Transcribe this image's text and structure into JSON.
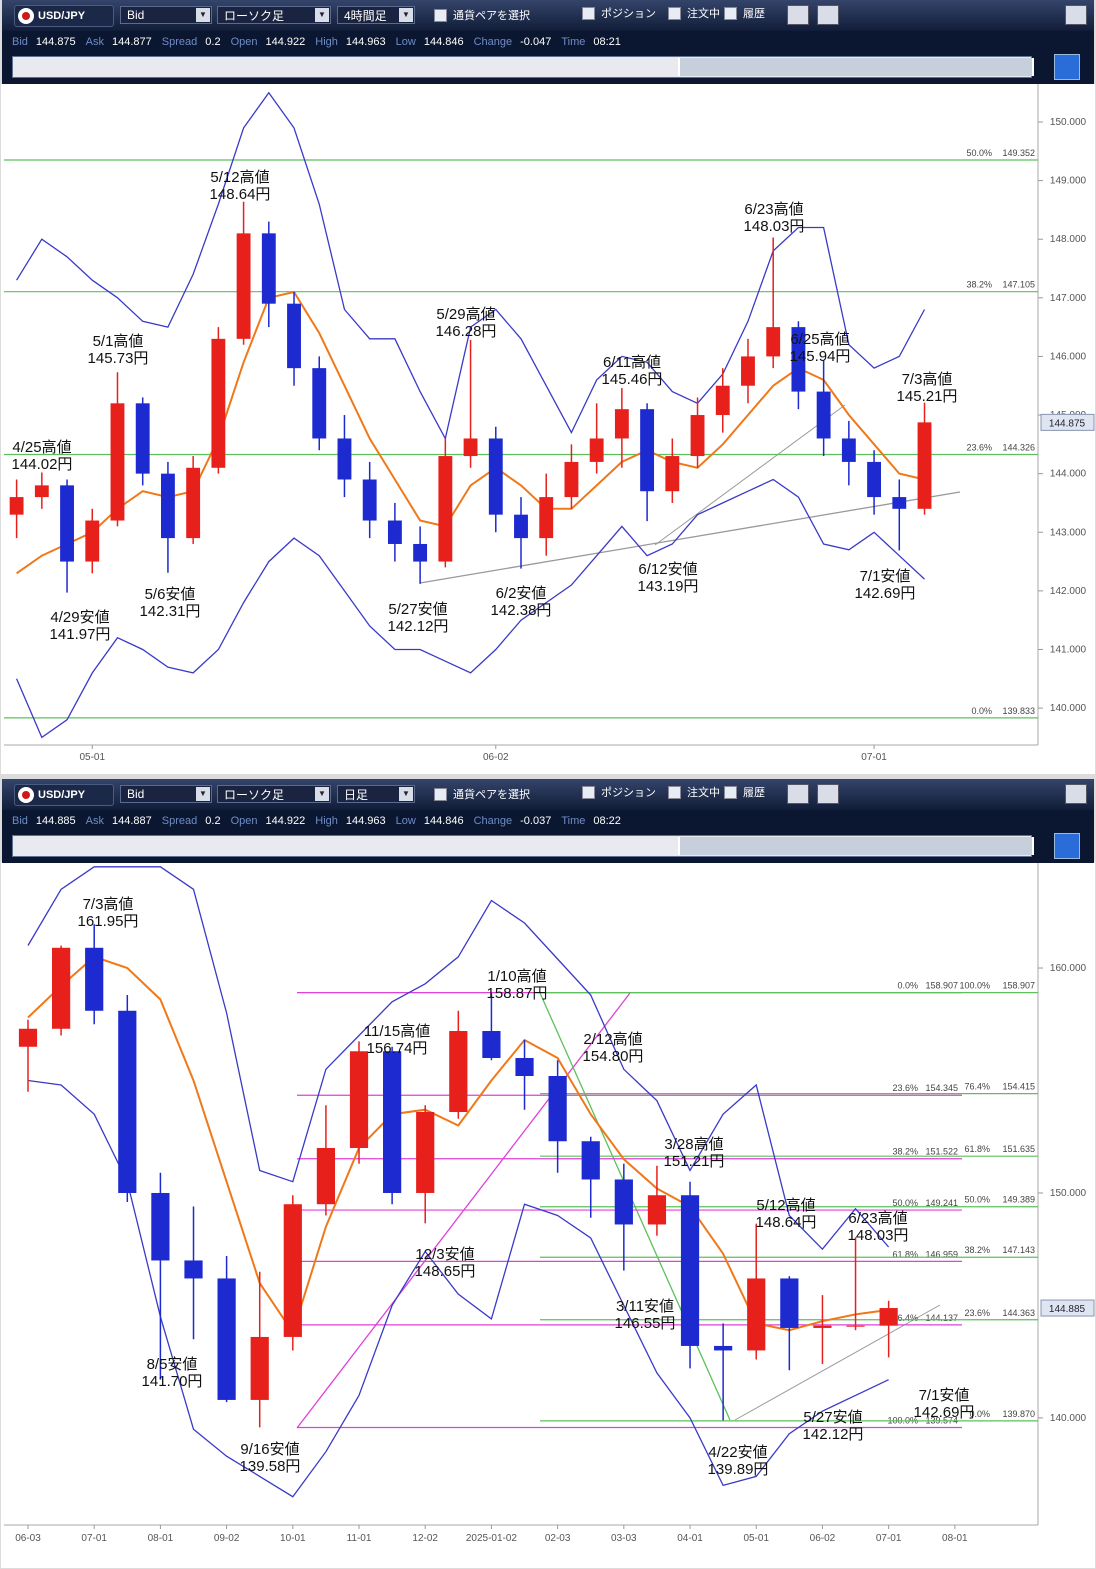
{
  "toolbars": [
    {
      "pair": "USD/JPY",
      "price_type": "Bid",
      "chart_style": "ローソク足",
      "timeframe": "4時間足",
      "select_pair": "通貨ペアを選択",
      "toggles": [
        "ポジション",
        "注文中",
        "履歴"
      ],
      "quote": [
        {
          "label": "Bid",
          "value": 144.875
        },
        {
          "label": "Ask",
          "value": 144.877
        },
        {
          "label": "Spread",
          "value": 0.2
        },
        {
          "label": "Open",
          "value": 144.922
        },
        {
          "label": "High",
          "value": 144.963
        },
        {
          "label": "Low",
          "value": 144.846
        },
        {
          "label": "Change",
          "value": -0.047
        },
        {
          "label": "Time",
          "value": "08:21"
        }
      ]
    },
    {
      "pair": "USD/JPY",
      "price_type": "Bid",
      "chart_style": "ローソク足",
      "timeframe": "日足",
      "select_pair": "通貨ペアを選択",
      "toggles": [
        "ポジション",
        "注文中",
        "履歴"
      ],
      "quote": [
        {
          "label": "Bid",
          "value": 144.885
        },
        {
          "label": "Ask",
          "value": 144.887
        },
        {
          "label": "Spread",
          "value": 0.2
        },
        {
          "label": "Open",
          "value": 144.922
        },
        {
          "label": "High",
          "value": 144.963
        },
        {
          "label": "Low",
          "value": 144.846
        },
        {
          "label": "Change",
          "value": -0.037
        },
        {
          "label": "Time",
          "value": "08:22"
        }
      ]
    }
  ],
  "chart_data": [
    {
      "type": "candlestick",
      "up_color": "#e8201c",
      "down_color": "#1c2ad0",
      "ma_color": "#f07818",
      "band_color": "#3a3ac8",
      "categories": [
        null,
        null,
        null,
        "05-01",
        null,
        null,
        null,
        null,
        null,
        null,
        null,
        null,
        null,
        null,
        null,
        null,
        null,
        null,
        null,
        "06-02",
        null,
        null,
        null,
        null,
        null,
        null,
        null,
        null,
        null,
        null,
        null,
        null,
        null,
        null,
        "07-01",
        null,
        null,
        null,
        null,
        null,
        null
      ],
      "open": [
        143.3,
        143.6,
        143.8,
        142.5,
        143.2,
        145.2,
        144.0,
        142.9,
        144.1,
        146.3,
        148.1,
        146.9,
        145.8,
        144.6,
        143.9,
        143.2,
        142.8,
        142.5,
        144.3,
        144.6,
        143.3,
        142.9,
        143.6,
        144.2,
        144.6,
        145.1,
        143.7,
        144.3,
        145.0,
        145.5,
        146.0,
        146.5,
        145.4,
        144.6,
        144.2,
        143.6,
        143.4,
        null,
        null,
        null,
        null
      ],
      "high": [
        143.9,
        144.02,
        143.9,
        143.4,
        145.73,
        145.3,
        144.2,
        144.3,
        146.5,
        148.64,
        148.3,
        147.1,
        146.0,
        145.0,
        144.2,
        143.5,
        143.1,
        144.6,
        146.28,
        144.8,
        143.6,
        144.0,
        144.5,
        145.2,
        145.46,
        145.2,
        144.6,
        145.3,
        145.8,
        146.3,
        148.03,
        146.6,
        145.94,
        144.9,
        144.4,
        143.9,
        145.21,
        null,
        null,
        null,
        null
      ],
      "low": [
        142.9,
        143.4,
        141.97,
        142.3,
        143.1,
        143.8,
        142.31,
        142.8,
        144.0,
        146.2,
        146.5,
        145.5,
        144.4,
        143.6,
        142.9,
        142.5,
        142.12,
        142.4,
        144.1,
        143.0,
        142.38,
        142.6,
        143.4,
        144.0,
        144.1,
        143.19,
        143.5,
        144.1,
        144.7,
        145.2,
        145.8,
        145.1,
        144.3,
        143.8,
        143.3,
        142.69,
        143.3,
        null,
        null,
        null,
        null
      ],
      "close": [
        143.6,
        143.8,
        142.5,
        143.2,
        145.2,
        144.0,
        142.9,
        144.1,
        146.3,
        148.1,
        146.9,
        145.8,
        144.6,
        143.9,
        143.2,
        142.8,
        142.5,
        144.3,
        144.6,
        143.3,
        142.9,
        143.6,
        144.2,
        144.6,
        145.1,
        143.7,
        144.3,
        145.0,
        145.5,
        146.0,
        146.5,
        145.4,
        144.6,
        144.2,
        143.6,
        143.4,
        144.875,
        null,
        null,
        null,
        null
      ],
      "ma": [
        142.3,
        142.6,
        142.8,
        143.0,
        143.4,
        143.7,
        143.6,
        143.7,
        144.6,
        145.9,
        147.0,
        147.1,
        146.4,
        145.5,
        144.6,
        143.9,
        143.2,
        143.1,
        143.8,
        144.1,
        143.8,
        143.4,
        143.4,
        143.8,
        144.2,
        144.4,
        144.2,
        144.1,
        144.5,
        145.0,
        145.5,
        145.8,
        145.6,
        145.0,
        144.5,
        144.0,
        143.9,
        null,
        null,
        null,
        null
      ],
      "upper_band": [
        147.3,
        148.0,
        147.7,
        147.3,
        147.0,
        146.6,
        146.5,
        147.4,
        148.6,
        149.9,
        150.5,
        149.9,
        148.6,
        146.8,
        146.3,
        146.3,
        145.4,
        144.6,
        146.5,
        146.8,
        146.3,
        145.5,
        144.7,
        145.6,
        146.0,
        145.9,
        145.4,
        145.2,
        145.7,
        146.6,
        147.8,
        148.2,
        148.2,
        146.2,
        145.8,
        146.0,
        146.8,
        null,
        null,
        null,
        null
      ],
      "lower_band": [
        140.5,
        139.5,
        139.8,
        140.6,
        141.2,
        141.0,
        140.7,
        140.6,
        141.0,
        141.8,
        142.5,
        142.9,
        142.6,
        142.0,
        141.4,
        141.0,
        141.0,
        140.8,
        140.6,
        141.0,
        141.5,
        141.8,
        142.1,
        142.6,
        143.1,
        142.6,
        142.8,
        143.3,
        143.5,
        143.7,
        143.9,
        143.6,
        142.8,
        142.7,
        143.0,
        142.6,
        142.2,
        null,
        null,
        null,
        null
      ],
      "ylim": [
        139.37,
        150.58
      ],
      "yticks": [
        {
          "value": 140,
          "label": "140.000"
        },
        {
          "value": 141,
          "label": "141.000"
        },
        {
          "value": 142,
          "label": "142.000"
        },
        {
          "value": 143,
          "label": "143.000"
        },
        {
          "value": 144,
          "label": "144.000"
        },
        {
          "value": 145,
          "label": "145.000"
        },
        {
          "value": 146,
          "label": "146.000"
        },
        {
          "value": 147,
          "label": "147.000"
        },
        {
          "value": 148,
          "label": "148.000"
        },
        {
          "value": 149,
          "label": "149.000"
        },
        {
          "value": 150,
          "label": "150.000"
        }
      ],
      "last_price": 144.875,
      "fib_sets": [
        {
          "color": "#5cc05c",
          "levels": [
            {
              "pct": "50.0%",
              "price": 149.352
            },
            {
              "pct": "38.2%",
              "price": 147.105
            },
            {
              "pct": "23.6%",
              "price": 144.326
            },
            {
              "pct": "0.0%",
              "price": 139.833
            }
          ]
        }
      ],
      "annotations": [
        [
          "4/25高値",
          "144.02円"
        ],
        [
          "4/29安値",
          "141.97円"
        ],
        [
          "5/1高値",
          "145.73円"
        ],
        [
          "5/6安値",
          "142.31円"
        ],
        [
          "5/12高値",
          "148.64円"
        ],
        [
          "5/27安値",
          "142.12円"
        ],
        [
          "5/29高値",
          "146.28円"
        ],
        [
          "6/2安値",
          "142.38円"
        ],
        [
          "6/11高値",
          "145.46円"
        ],
        [
          "6/12安値",
          "143.19円"
        ],
        [
          "6/23高値",
          "148.03円"
        ],
        [
          "6/25高値",
          "145.94円"
        ],
        [
          "7/3高値",
          "145.21円"
        ],
        [
          "7/1安値",
          "142.69円"
        ]
      ]
    },
    {
      "type": "candlestick",
      "up_color": "#e8201c",
      "down_color": "#1c2ad0",
      "ma_color": "#f07818",
      "band_color": "#3a3ac8",
      "categories": [
        "06-03",
        null,
        "07-01",
        null,
        "08-01",
        null,
        "09-02",
        null,
        "10-01",
        null,
        "11-01",
        null,
        "12-02",
        null,
        "2025-01-02",
        null,
        "02-03",
        null,
        "03-03",
        null,
        "04-01",
        null,
        "05-01",
        null,
        "06-02",
        null,
        "07-01",
        null,
        "08-01",
        null,
        null
      ],
      "open": [
        156.5,
        157.3,
        160.9,
        158.1,
        150.0,
        147.0,
        146.2,
        140.8,
        143.6,
        149.5,
        152.0,
        156.3,
        150.0,
        153.6,
        157.2,
        156.0,
        155.2,
        152.3,
        150.6,
        148.6,
        149.9,
        143.2,
        143.0,
        146.2,
        144.0,
        144.1,
        144.1,
        null,
        null,
        null,
        null
      ],
      "high": [
        157.7,
        161.0,
        161.95,
        158.8,
        150.9,
        149.4,
        147.2,
        146.5,
        149.9,
        153.9,
        156.74,
        156.5,
        153.9,
        158.1,
        158.87,
        156.8,
        155.9,
        152.5,
        151.3,
        151.21,
        150.5,
        144.2,
        148.64,
        146.3,
        145.46,
        148.03,
        145.21,
        null,
        null,
        null,
        null
      ],
      "low": [
        154.5,
        157.0,
        157.5,
        149.6,
        141.7,
        143.5,
        140.7,
        139.58,
        143.0,
        149.0,
        151.3,
        149.5,
        148.65,
        153.3,
        155.9,
        153.7,
        150.9,
        148.9,
        146.55,
        148.1,
        142.2,
        139.89,
        142.6,
        142.12,
        142.4,
        143.9,
        142.69,
        null,
        null,
        null,
        null
      ],
      "close": [
        157.3,
        160.9,
        158.1,
        150.0,
        147.0,
        146.2,
        140.8,
        143.6,
        149.5,
        152.0,
        156.3,
        150.0,
        153.6,
        157.2,
        156.0,
        155.2,
        152.3,
        150.6,
        148.6,
        149.9,
        143.2,
        143.0,
        146.2,
        144.0,
        144.1,
        144.1,
        144.885,
        null,
        null,
        null,
        null
      ],
      "ma": [
        157.8,
        159.2,
        160.5,
        160.0,
        158.6,
        155.0,
        150.5,
        146.0,
        143.8,
        148.5,
        152.0,
        153.5,
        153.7,
        153.0,
        155.0,
        156.8,
        156.0,
        153.5,
        151.5,
        150.2,
        149.4,
        147.3,
        144.2,
        143.9,
        144.3,
        144.6,
        144.8,
        null,
        null,
        null,
        null
      ],
      "upper_band": [
        161.0,
        163.5,
        164.5,
        164.5,
        164.5,
        163.5,
        158.0,
        151.0,
        150.5,
        155.5,
        157.0,
        158.5,
        159.3,
        160.5,
        163.0,
        162.0,
        160.4,
        158.8,
        155.5,
        154.1,
        151.0,
        153.5,
        154.8,
        149.0,
        147.5,
        149.3,
        147.6,
        null,
        null,
        null,
        null
      ],
      "lower_band": [
        155.0,
        154.8,
        153.5,
        150.5,
        144.5,
        139.5,
        138.3,
        137.4,
        136.5,
        138.5,
        141.0,
        145.0,
        147.4,
        145.5,
        144.4,
        149.5,
        149.0,
        148.0,
        145.0,
        142.0,
        140.0,
        137.0,
        137.4,
        139.3,
        140.3,
        141.0,
        141.7,
        null,
        null,
        null,
        null
      ],
      "ylim": [
        135.24,
        164.58
      ],
      "yticks": [
        {
          "value": 140,
          "label": "140.000"
        },
        {
          "value": 150,
          "label": "150.000"
        },
        {
          "value": 160,
          "label": "160.000"
        }
      ],
      "last_price": 144.885,
      "fib_sets": [
        {
          "color": "#e040d8",
          "levels": [
            {
              "pct": "0.0%",
              "price": 158.907
            },
            {
              "pct": "23.6%",
              "price": 154.345
            },
            {
              "pct": "38.2%",
              "price": 151.522
            },
            {
              "pct": "50.0%",
              "price": 149.241
            },
            {
              "pct": "61.8%",
              "price": 146.959
            },
            {
              "pct": "76.4%",
              "price": 144.137
            },
            {
              "pct": "100.0%",
              "price": 139.574
            }
          ]
        },
        {
          "color": "#5cc05c",
          "levels": [
            {
              "pct": "100.0%",
              "price": 158.907
            },
            {
              "pct": "76.4%",
              "price": 154.415
            },
            {
              "pct": "61.8%",
              "price": 151.635
            },
            {
              "pct": "50.0%",
              "price": 149.389
            },
            {
              "pct": "38.2%",
              "price": 147.143
            },
            {
              "pct": "23.6%",
              "price": 144.363
            },
            {
              "pct": "0.0%",
              "price": {
                "value": 139.87,
                "label": "139.870"
              }
            }
          ]
        }
      ],
      "annotations": [
        [
          "7/3高値",
          "161.95円"
        ],
        [
          "8/5安値",
          "141.70円"
        ],
        [
          "9/16安値",
          "139.58円"
        ],
        [
          "11/15高値",
          "156.74円"
        ],
        [
          "12/3安値",
          "148.65円"
        ],
        [
          "1/10高値",
          "158.87円"
        ],
        [
          "2/12高値",
          "154.80円"
        ],
        [
          "3/11安値",
          "146.55円"
        ],
        [
          "3/28高値",
          "151.21円"
        ],
        [
          "4/22安値",
          "139.89円"
        ],
        [
          "5/12高値",
          "148.64円"
        ],
        [
          "5/27安値",
          "142.12円"
        ],
        [
          "6/23高値",
          "148.03円"
        ],
        [
          "7/1安値",
          "142.69円"
        ]
      ]
    }
  ]
}
